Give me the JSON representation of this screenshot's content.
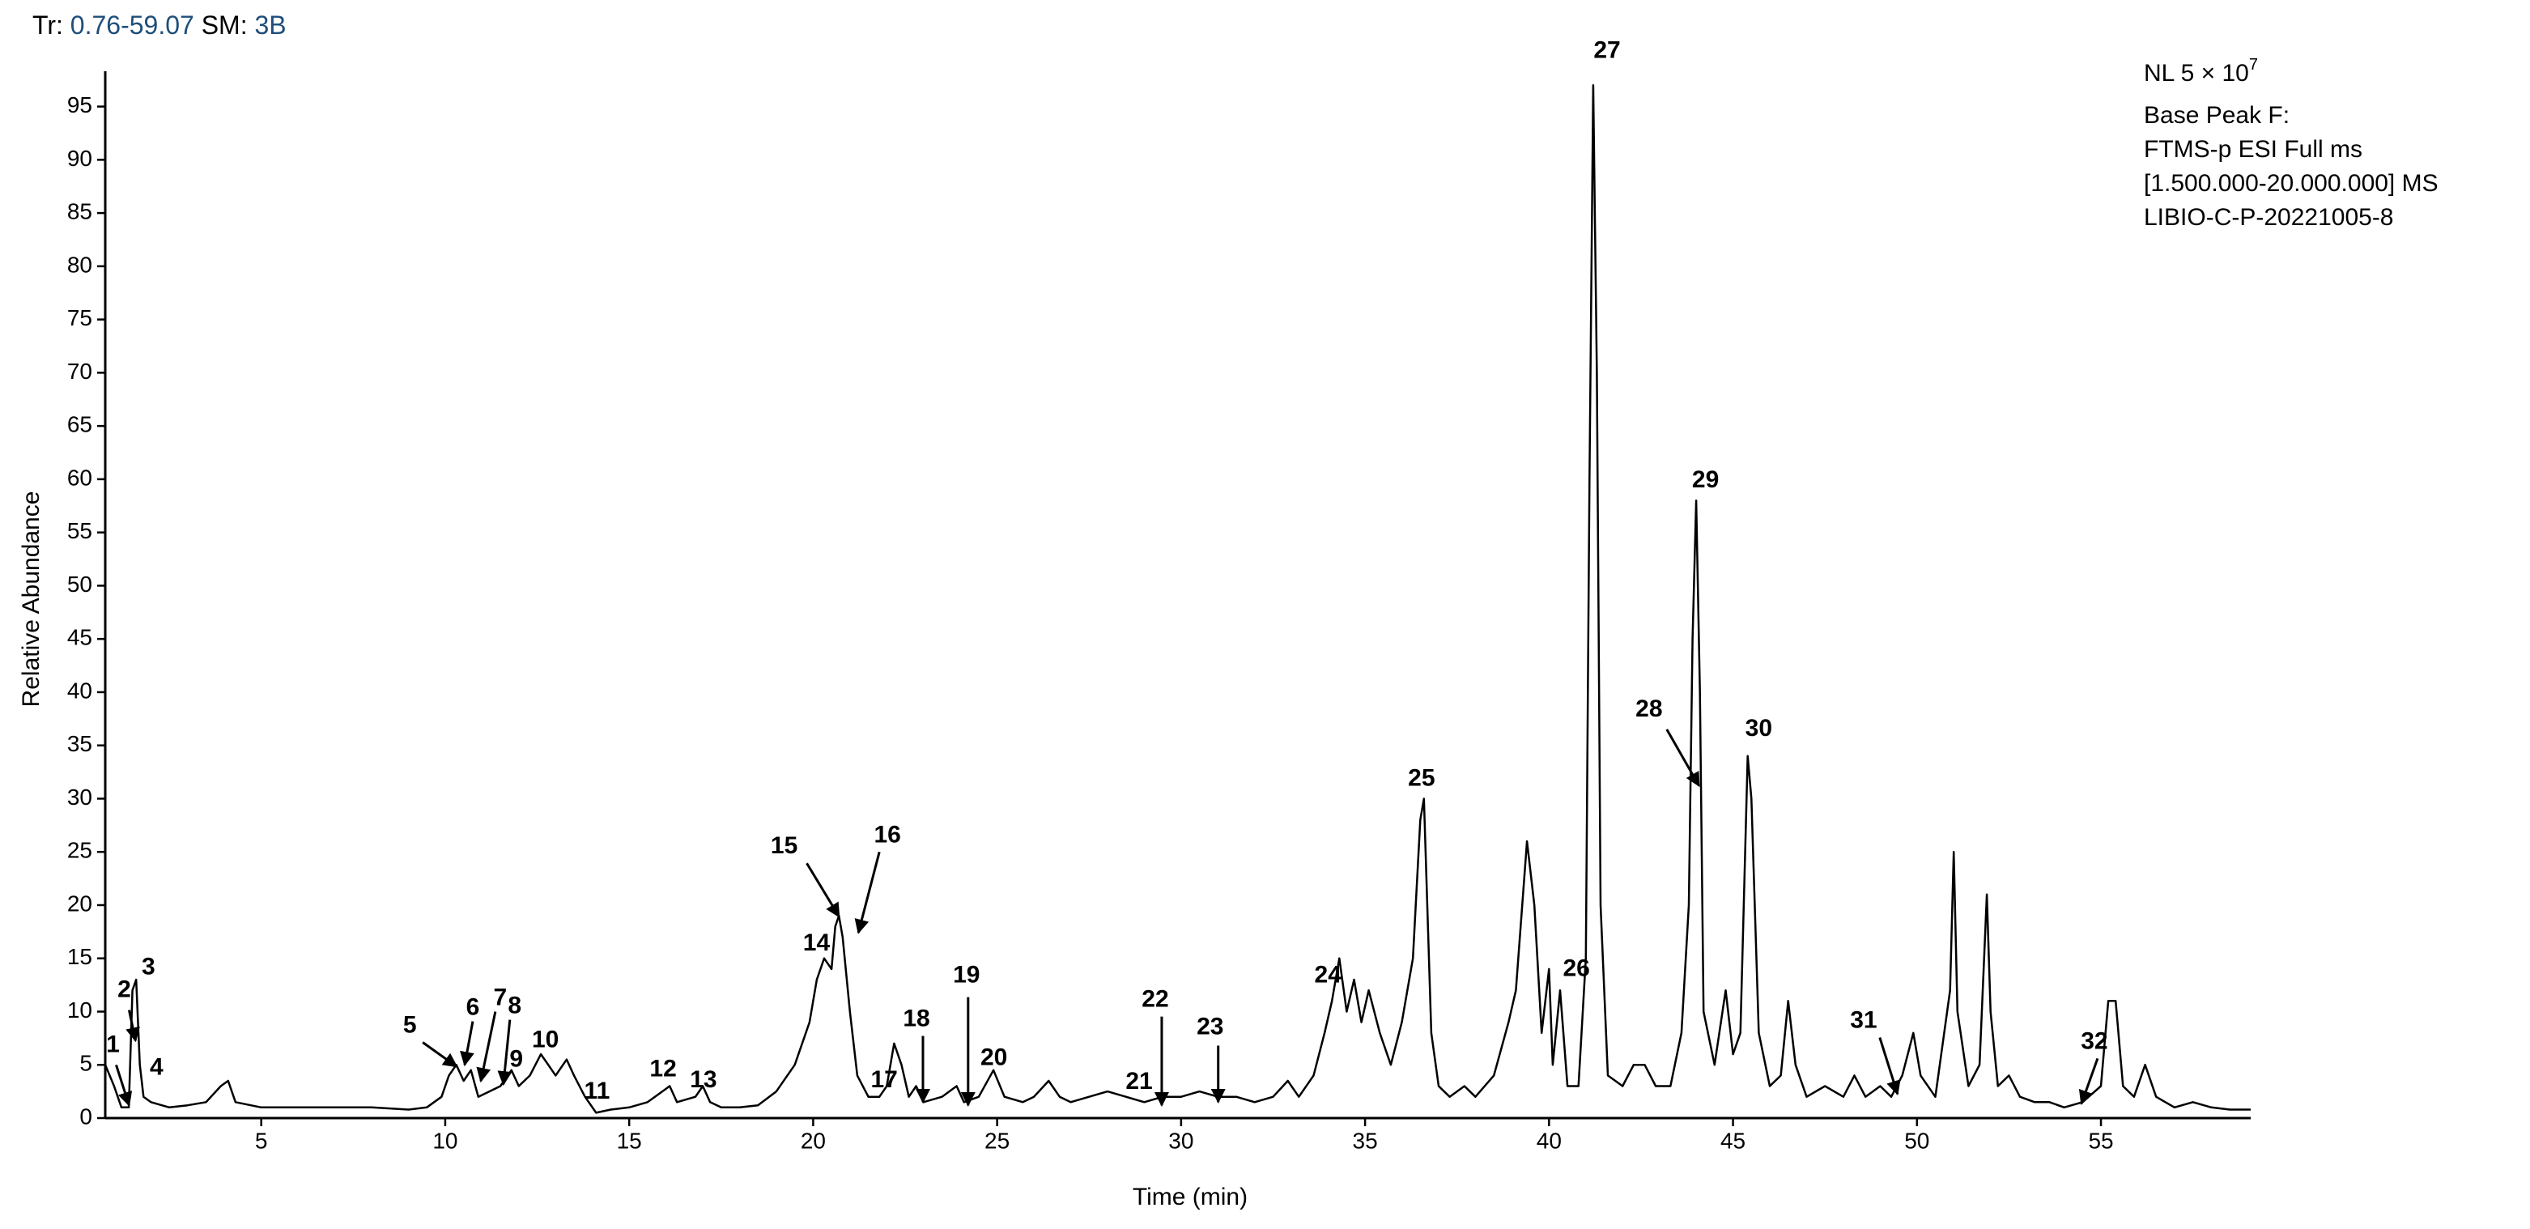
{
  "chart_data": {
    "type": "line",
    "header": {
      "tr_label": "Tr:",
      "tr_range": "0.76-59.07",
      "sm_label": "SM:",
      "sm_value": "3B"
    },
    "info": {
      "nl": "NL 5 × 10",
      "nl_exponent": "7",
      "lines": [
        "Base Peak F:",
        "FTMS-p ESI Full ms",
        "[1.500.000-20.000.000] MS",
        "LIBIO-C-P-20221005-8"
      ]
    },
    "x_label": "Time (min)",
    "y_label": "Relative Abundance",
    "xlim": [
      0.76,
      59.07
    ],
    "ylim": [
      0,
      99
    ],
    "xticks": [
      5,
      10,
      15,
      20,
      25,
      30,
      35,
      40,
      45,
      50,
      55
    ],
    "yticks": [
      0,
      5,
      10,
      15,
      20,
      25,
      30,
      35,
      40,
      45,
      50,
      55,
      60,
      65,
      70,
      75,
      80,
      85,
      90,
      95
    ],
    "color": "#000000",
    "x": [
      0.76,
      1.0,
      1.2,
      1.4,
      1.5,
      1.6,
      1.7,
      1.8,
      2.0,
      2.5,
      3.0,
      3.5,
      3.9,
      4.1,
      4.3,
      5,
      6,
      7,
      8,
      9,
      9.5,
      9.9,
      10.1,
      10.3,
      10.5,
      10.7,
      10.9,
      11.2,
      11.5,
      11.8,
      12,
      12.3,
      12.6,
      12.8,
      13.0,
      13.3,
      13.5,
      13.8,
      14.1,
      14.5,
      15.0,
      15.5,
      15.9,
      16.1,
      16.3,
      16.8,
      17.0,
      17.2,
      17.5,
      18.0,
      18.5,
      19.0,
      19.5,
      19.9,
      20.1,
      20.3,
      20.5,
      20.6,
      20.7,
      20.8,
      21.0,
      21.2,
      21.5,
      21.8,
      22.0,
      22.2,
      22.4,
      22.6,
      22.8,
      23.0,
      23.5,
      23.9,
      24.1,
      24.5,
      24.9,
      25.2,
      25.7,
      26.0,
      26.4,
      26.7,
      27,
      27.5,
      28,
      28.5,
      29,
      29.5,
      30,
      30.5,
      31,
      31.5,
      32,
      32.5,
      32.9,
      33.2,
      33.6,
      33.9,
      34.1,
      34.3,
      34.5,
      34.7,
      34.9,
      35.1,
      35.4,
      35.7,
      36.0,
      36.3,
      36.5,
      36.6,
      36.8,
      37.0,
      37.3,
      37.7,
      38,
      38.5,
      38.9,
      39.1,
      39.4,
      39.6,
      39.8,
      40.0,
      40.1,
      40.3,
      40.5,
      40.8,
      41.0,
      41.1,
      41.2,
      41.3,
      41.4,
      41.6,
      42.0,
      42.3,
      42.6,
      42.9,
      43.3,
      43.6,
      43.8,
      43.9,
      44.0,
      44.1,
      44.2,
      44.5,
      44.8,
      45.0,
      45.2,
      45.4,
      45.5,
      45.7,
      46.0,
      46.3,
      46.5,
      46.7,
      47.0,
      47.5,
      48,
      48.3,
      48.6,
      49,
      49.3,
      49.6,
      49.9,
      50.1,
      50.5,
      50.9,
      51.0,
      51.1,
      51.4,
      51.7,
      51.9,
      52.0,
      52.2,
      52.5,
      52.8,
      53.2,
      53.6,
      54,
      54.5,
      55.0,
      55.2,
      55.4,
      55.6,
      55.9,
      56.2,
      56.5,
      57,
      57.5,
      58,
      58.5,
      59.07
    ],
    "values": [
      5,
      3,
      1,
      1,
      12,
      13,
      5,
      2,
      1.5,
      1,
      1.2,
      1.5,
      3,
      3.5,
      1.5,
      1,
      1,
      1,
      1,
      0.8,
      1,
      2,
      4,
      5,
      3.5,
      4.5,
      2,
      2.5,
      3,
      4.5,
      3,
      4,
      6,
      5,
      4,
      5.5,
      4,
      2,
      0.5,
      0.8,
      1,
      1.5,
      2.5,
      3,
      1.5,
      2,
      3,
      1.5,
      1,
      1,
      1.2,
      2.5,
      5,
      9,
      13,
      15,
      14,
      18,
      19,
      17,
      10,
      4,
      2,
      2,
      3,
      7,
      5,
      2,
      3,
      1.5,
      2,
      3,
      1.5,
      2,
      4.5,
      2,
      1.5,
      2,
      3.5,
      2,
      1.5,
      2,
      2.5,
      2,
      1.5,
      2,
      2,
      2.5,
      2,
      2,
      1.5,
      2,
      3.5,
      2,
      4,
      8,
      11,
      15,
      10,
      13,
      9,
      12,
      8,
      5,
      9,
      15,
      28,
      30,
      8,
      3,
      2,
      3,
      2,
      4,
      9,
      12,
      26,
      20,
      8,
      14,
      5,
      12,
      3,
      3,
      15,
      60,
      97,
      70,
      20,
      4,
      3,
      5,
      5,
      3,
      3,
      8,
      20,
      45,
      58,
      40,
      10,
      5,
      12,
      6,
      8,
      34,
      30,
      8,
      3,
      4,
      11,
      5,
      2,
      3,
      2,
      4,
      2,
      3,
      2,
      4,
      8,
      4,
      2,
      12,
      25,
      10,
      3,
      5,
      21,
      10,
      3,
      4,
      2,
      1.5,
      1.5,
      1,
      1.5,
      3,
      11,
      11,
      3,
      2,
      5,
      2,
      1,
      1.5,
      1,
      0.8,
      0.8
    ],
    "peak_labels": [
      "1",
      "2",
      "3",
      "4",
      "5",
      "6",
      "7",
      "8",
      "9",
      "10",
      "11",
      "12",
      "13",
      "14",
      "15",
      "16",
      "17",
      "18",
      "19",
      "20",
      "21",
      "22",
      "23",
      "24",
      "25",
      "26",
      "27",
      "28",
      "29",
      "30",
      "31",
      "32"
    ]
  }
}
